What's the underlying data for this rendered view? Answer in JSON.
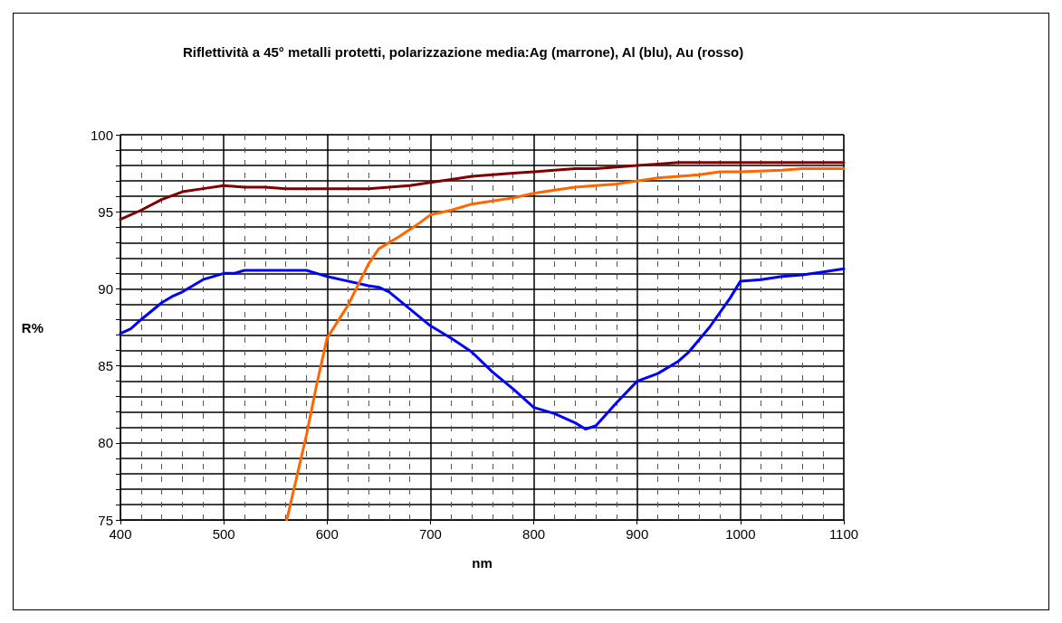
{
  "chart_data": {
    "type": "line",
    "title": "Riflettività a 45° metalli protetti, polarizzazione media:Ag (marrone), Al (blu), Au (rosso)",
    "xlabel": "nm",
    "ylabel": "R%",
    "xlim": [
      400,
      1100
    ],
    "ylim": [
      75,
      100
    ],
    "xticks": [
      400,
      {
        "value": 420,
        "label": null
      },
      {
        "value": 440,
        "label": null
      },
      {
        "value": 460,
        "label": null
      },
      {
        "value": 480,
        "label": null
      },
      500,
      {
        "value": 520,
        "label": null
      },
      {
        "value": 540,
        "label": null
      },
      {
        "value": 560,
        "label": null
      },
      {
        "value": 580,
        "label": null
      },
      600,
      {
        "value": 620,
        "label": null
      },
      {
        "value": 640,
        "label": null
      },
      {
        "value": 660,
        "label": null
      },
      {
        "value": 680,
        "label": null
      },
      700,
      {
        "value": 720,
        "label": null
      },
      {
        "value": 740,
        "label": null
      },
      {
        "value": 760,
        "label": null
      },
      {
        "value": 780,
        "label": null
      },
      800,
      {
        "value": 820,
        "label": null
      },
      {
        "value": 840,
        "label": null
      },
      {
        "value": 860,
        "label": null
      },
      {
        "value": 880,
        "label": null
      },
      900,
      {
        "value": 920,
        "label": null
      },
      {
        "value": 940,
        "label": null
      },
      {
        "value": 960,
        "label": null
      },
      {
        "value": 980,
        "label": null
      },
      1000,
      {
        "value": 1020,
        "label": null
      },
      {
        "value": 1040,
        "label": null
      },
      {
        "value": 1060,
        "label": null
      },
      {
        "value": 1080,
        "label": null
      },
      1100
    ],
    "yticks": [
      75,
      {
        "value": 76,
        "label": null
      },
      {
        "value": 77,
        "label": null
      },
      {
        "value": 78,
        "label": null
      },
      {
        "value": 79,
        "label": null
      },
      80,
      {
        "value": 81,
        "label": null
      },
      {
        "value": 82,
        "label": null
      },
      {
        "value": 83,
        "label": null
      },
      {
        "value": 84,
        "label": null
      },
      85,
      {
        "value": 86,
        "label": null
      },
      {
        "value": 87,
        "label": null
      },
      {
        "value": 88,
        "label": null
      },
      {
        "value": 89,
        "label": null
      },
      90,
      {
        "value": 91,
        "label": null
      },
      {
        "value": 92,
        "label": null
      },
      {
        "value": 93,
        "label": null
      },
      {
        "value": 94,
        "label": null
      },
      95,
      {
        "value": 96,
        "label": null
      },
      {
        "value": 97,
        "label": null
      },
      {
        "value": 98,
        "label": null
      },
      {
        "value": 99,
        "label": null
      },
      100
    ],
    "grid": true,
    "marker": "none",
    "line_style": "solid",
    "series": [
      {
        "color": "#800000",
        "x": [
          400,
          420,
          440,
          460,
          480,
          500,
          520,
          540,
          560,
          600,
          640,
          660,
          680,
          700,
          720,
          740,
          760,
          780,
          800,
          820,
          840,
          860,
          880,
          900,
          920,
          940,
          1000,
          1100
        ],
        "values": [
          94.5,
          95.1,
          95.8,
          96.3,
          96.5,
          96.7,
          96.6,
          96.6,
          96.5,
          96.5,
          96.5,
          96.6,
          96.7,
          96.9,
          97.1,
          97.3,
          97.4,
          97.5,
          97.6,
          97.7,
          97.8,
          97.8,
          97.9,
          98.0,
          98.1,
          98.2,
          98.2,
          98.2
        ]
      },
      {
        "color": "#0000ff",
        "x": [
          400,
          410,
          420,
          440,
          450,
          460,
          480,
          500,
          510,
          520,
          560,
          580,
          590,
          600,
          620,
          640,
          650,
          660,
          680,
          700,
          720,
          740,
          760,
          780,
          800,
          820,
          840,
          850,
          860,
          880,
          900,
          920,
          940,
          950,
          970,
          990,
          1000,
          1020,
          1040,
          1060,
          1080,
          1100
        ],
        "values": [
          87.1,
          87.4,
          88.0,
          89.1,
          89.5,
          89.8,
          90.6,
          91.0,
          91.0,
          91.2,
          91.2,
          91.2,
          91.0,
          90.8,
          90.5,
          90.2,
          90.1,
          89.8,
          88.7,
          87.6,
          86.8,
          85.9,
          84.6,
          83.5,
          82.3,
          81.9,
          81.3,
          80.9,
          81.1,
          82.6,
          84.0,
          84.5,
          85.3,
          85.9,
          87.5,
          89.4,
          90.5,
          90.6,
          90.8,
          90.9,
          91.1,
          91.3
        ]
      },
      {
        "color": "#ff6600",
        "x": [
          561,
          580,
          590,
          600,
          620,
          640,
          650,
          670,
          690,
          700,
          720,
          740,
          760,
          780,
          800,
          820,
          840,
          860,
          880,
          900,
          920,
          940,
          960,
          980,
          1000,
          1040,
          1060,
          1100
        ],
        "values": [
          75.0,
          80.5,
          83.8,
          86.8,
          88.9,
          91.6,
          92.6,
          93.4,
          94.3,
          94.8,
          95.1,
          95.5,
          95.7,
          95.9,
          96.2,
          96.4,
          96.6,
          96.7,
          96.8,
          97.0,
          97.2,
          97.3,
          97.4,
          97.6,
          97.6,
          97.7,
          97.8,
          97.8
        ]
      }
    ]
  }
}
